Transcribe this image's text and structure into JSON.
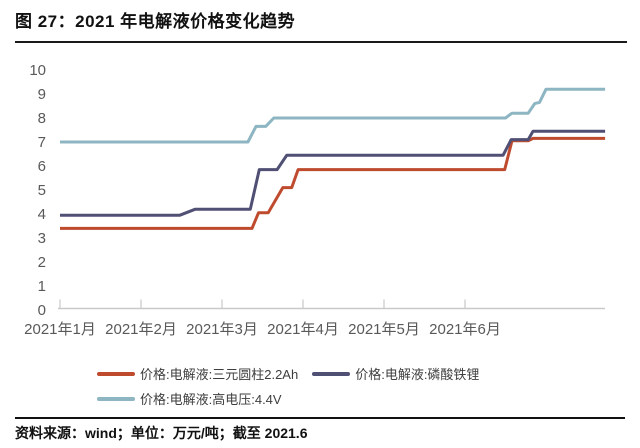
{
  "header": {
    "title": "图 27：2021 年电解液价格变化趋势"
  },
  "footer": {
    "text": "资料来源：wind；单位：万元/吨；截至 2021.6"
  },
  "chart_data": {
    "type": "line",
    "title": "2021 年电解液价格变化趋势",
    "unit": "万元/吨",
    "xlabel": "",
    "ylabel": "",
    "ylim": [
      0,
      10
    ],
    "y_ticks": [
      0,
      1,
      2,
      3,
      4,
      5,
      6,
      7,
      8,
      9,
      10
    ],
    "x_tick_labels": [
      "2021年1月",
      "2021年2月",
      "2021年3月",
      "2021年4月",
      "2021年5月",
      "2021年6月"
    ],
    "x_tick_positions": [
      1,
      2,
      3,
      4,
      5,
      6
    ],
    "xlim": [
      1,
      7.75
    ],
    "grid": false,
    "legend_position": "bottom",
    "axis_color": "#c9c9c9",
    "tick_label_color": "#595959",
    "series": [
      {
        "name": "价格:电解液:三元圆柱2.2Ah",
        "color": "#bf4b2f",
        "points": [
          [
            1.0,
            3.4
          ],
          [
            3.37,
            3.4
          ],
          [
            3.45,
            4.05
          ],
          [
            3.57,
            4.05
          ],
          [
            3.75,
            5.1
          ],
          [
            3.86,
            5.1
          ],
          [
            3.94,
            5.85
          ],
          [
            6.49,
            5.85
          ],
          [
            6.58,
            7.05
          ],
          [
            6.78,
            7.05
          ],
          [
            6.84,
            7.15
          ],
          [
            7.73,
            7.15
          ]
        ]
      },
      {
        "name": "价格:电解液:磷酸铁锂",
        "color": "#504f74",
        "points": [
          [
            1.0,
            3.95
          ],
          [
            2.48,
            3.95
          ],
          [
            2.67,
            4.2
          ],
          [
            3.35,
            4.2
          ],
          [
            3.46,
            5.85
          ],
          [
            3.68,
            5.85
          ],
          [
            3.8,
            6.45
          ],
          [
            6.47,
            6.45
          ],
          [
            6.57,
            7.1
          ],
          [
            6.78,
            7.1
          ],
          [
            6.84,
            7.45
          ],
          [
            7.73,
            7.45
          ]
        ]
      },
      {
        "name": "价格:电解液:高电压:4.4V",
        "color": "#8db5c2",
        "points": [
          [
            1.0,
            7.0
          ],
          [
            3.32,
            7.0
          ],
          [
            3.42,
            7.65
          ],
          [
            3.54,
            7.65
          ],
          [
            3.64,
            8.0
          ],
          [
            6.5,
            8.0
          ],
          [
            6.58,
            8.2
          ],
          [
            6.78,
            8.2
          ],
          [
            6.86,
            8.6
          ],
          [
            6.92,
            8.65
          ],
          [
            7.0,
            9.2
          ],
          [
            7.73,
            9.2
          ]
        ]
      }
    ]
  }
}
